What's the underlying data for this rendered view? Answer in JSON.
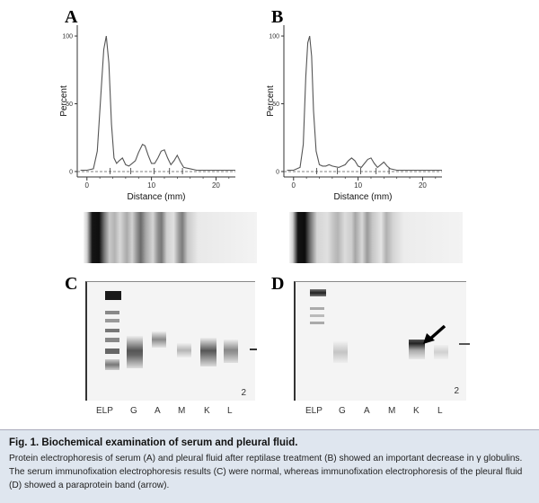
{
  "panels": {
    "A": "A",
    "B": "B",
    "C": "C",
    "D": "D"
  },
  "chart_data": [
    {
      "type": "line",
      "panel": "A",
      "xlabel": "Distance (mm)",
      "ylabel": "Percent",
      "x_ticks": [
        "0",
        "10",
        "20"
      ],
      "y_ticks": [
        "0",
        "50",
        "100"
      ],
      "xlim": [
        -1.5,
        23
      ],
      "ylim": [
        -4,
        108
      ],
      "series": [
        {
          "x": [
            -1,
            0,
            1,
            1.6,
            2.2,
            2.6,
            3.0,
            3.4,
            3.8,
            4.2,
            4.6,
            5.0,
            5.5,
            6.0,
            6.5,
            7.0,
            7.5,
            8.0,
            8.6,
            9.0,
            9.5,
            10,
            10.5,
            11,
            11.5,
            12.0,
            12.5,
            13,
            13.5,
            14.0,
            14.5,
            15,
            16,
            17,
            18,
            19,
            20,
            21,
            22,
            23
          ],
          "y": [
            1,
            1,
            2,
            15,
            60,
            90,
            100,
            80,
            35,
            10,
            6,
            8,
            10,
            5,
            4,
            6,
            8,
            14,
            20,
            19,
            12,
            6,
            6,
            10,
            15,
            16,
            10,
            5,
            8,
            12,
            7,
            3,
            2,
            1,
            1,
            1,
            1,
            1,
            1,
            1
          ]
        }
      ]
    },
    {
      "type": "line",
      "panel": "B",
      "xlabel": "Distance (mm)",
      "ylabel": "Percent",
      "x_ticks": [
        "0",
        "10",
        "20"
      ],
      "y_ticks": [
        "0",
        "50",
        "100"
      ],
      "xlim": [
        -1.5,
        23
      ],
      "ylim": [
        -4,
        108
      ],
      "series": [
        {
          "x": [
            -1,
            0,
            1,
            1.5,
            1.9,
            2.2,
            2.5,
            2.8,
            3.1,
            3.5,
            4.0,
            4.5,
            5.0,
            5.5,
            6.0,
            7.0,
            8.0,
            8.5,
            9.0,
            9.5,
            10,
            10.5,
            11,
            11.5,
            12.0,
            12.5,
            13,
            13.5,
            14,
            14.5,
            15,
            16,
            17,
            18,
            19,
            20,
            21,
            22,
            23
          ],
          "y": [
            1,
            1,
            3,
            20,
            70,
            95,
            100,
            85,
            45,
            15,
            5,
            4,
            4,
            5,
            4,
            3,
            5,
            8,
            10,
            8,
            4,
            3,
            6,
            9,
            10,
            6,
            3,
            5,
            7,
            4,
            2,
            1,
            1,
            1,
            1,
            1,
            1,
            1,
            1
          ]
        }
      ]
    }
  ],
  "gel_C": {
    "lanes": [
      "ELP",
      "G",
      "A",
      "M",
      "K",
      "L"
    ],
    "number": "2"
  },
  "gel_D": {
    "lanes": [
      "ELP",
      "G",
      "A",
      "M",
      "K",
      "L"
    ],
    "number": "2"
  },
  "caption": {
    "title": "Fig. 1.  Biochemical examination of serum and pleural fluid.",
    "body": "Protein electrophoresis of serum (A) and pleural fluid after reptilase treatment (B) showed an important decrease in γ globulins. The serum immunofixation electrophoresis results (C) were normal, whereas immunofixation electrophoresis of the pleural fluid (D) showed a paraprotein band (arrow)."
  },
  "colors": {
    "caption_bg": "#dfe6ef",
    "line": "#555555",
    "gel_band": "#222222"
  }
}
